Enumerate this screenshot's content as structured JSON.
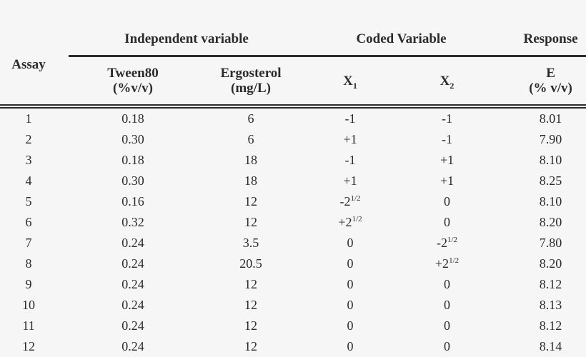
{
  "table": {
    "headers": {
      "assay": "Assay",
      "independent_group": "Independent variable",
      "coded_group": "Coded Variable",
      "response_group": "Response",
      "tween80_name": "Tween80",
      "tween80_unit": "(%v/v)",
      "ergosterol_name": "Ergosterol",
      "ergosterol_unit": "(mg/L)",
      "x1_base": "X",
      "x1_subscript": "1",
      "x2_base": "X",
      "x2_subscript": "2",
      "response_symbol": "E",
      "response_unit": "(% v/v)"
    },
    "rows": [
      {
        "assay": "1",
        "tween80": "0.18",
        "ergosterol": "6",
        "x1": "-1",
        "x1_sup": "",
        "x2": "-1",
        "x2_sup": "",
        "e": "8.01"
      },
      {
        "assay": "2",
        "tween80": "0.30",
        "ergosterol": "6",
        "x1": "+1",
        "x1_sup": "",
        "x2": "-1",
        "x2_sup": "",
        "e": "7.90"
      },
      {
        "assay": "3",
        "tween80": "0.18",
        "ergosterol": "18",
        "x1": "-1",
        "x1_sup": "",
        "x2": "+1",
        "x2_sup": "",
        "e": "8.10"
      },
      {
        "assay": "4",
        "tween80": "0.30",
        "ergosterol": "18",
        "x1": "+1",
        "x1_sup": "",
        "x2": "+1",
        "x2_sup": "",
        "e": "8.25"
      },
      {
        "assay": "5",
        "tween80": "0.16",
        "ergosterol": "12",
        "x1": "-2",
        "x1_sup": "1/2",
        "x2": "0",
        "x2_sup": "",
        "e": "8.10"
      },
      {
        "assay": "6",
        "tween80": "0.32",
        "ergosterol": "12",
        "x1": "+2",
        "x1_sup": "1/2",
        "x2": "0",
        "x2_sup": "",
        "e": "8.20"
      },
      {
        "assay": "7",
        "tween80": "0.24",
        "ergosterol": "3.5",
        "x1": "0",
        "x1_sup": "",
        "x2": "-2",
        "x2_sup": "1/2",
        "e": "7.80"
      },
      {
        "assay": "8",
        "tween80": "0.24",
        "ergosterol": "20.5",
        "x1": "0",
        "x1_sup": "",
        "x2": "+2",
        "x2_sup": "1/2",
        "e": "8.20"
      },
      {
        "assay": "9",
        "tween80": "0.24",
        "ergosterol": "12",
        "x1": "0",
        "x1_sup": "",
        "x2": "0",
        "x2_sup": "",
        "e": "8.12"
      },
      {
        "assay": "10",
        "tween80": "0.24",
        "ergosterol": "12",
        "x1": "0",
        "x1_sup": "",
        "x2": "0",
        "x2_sup": "",
        "e": "8.13"
      },
      {
        "assay": "11",
        "tween80": "0.24",
        "ergosterol": "12",
        "x1": "0",
        "x1_sup": "",
        "x2": "0",
        "x2_sup": "",
        "e": "8.12"
      },
      {
        "assay": "12",
        "tween80": "0.24",
        "ergosterol": "12",
        "x1": "0",
        "x1_sup": "",
        "x2": "0",
        "x2_sup": "",
        "e": "8.14"
      }
    ],
    "style": {
      "background_color": "#f6f6f6",
      "text_color": "#2b2b2b",
      "rule_color": "#2b2b2b"
    }
  }
}
